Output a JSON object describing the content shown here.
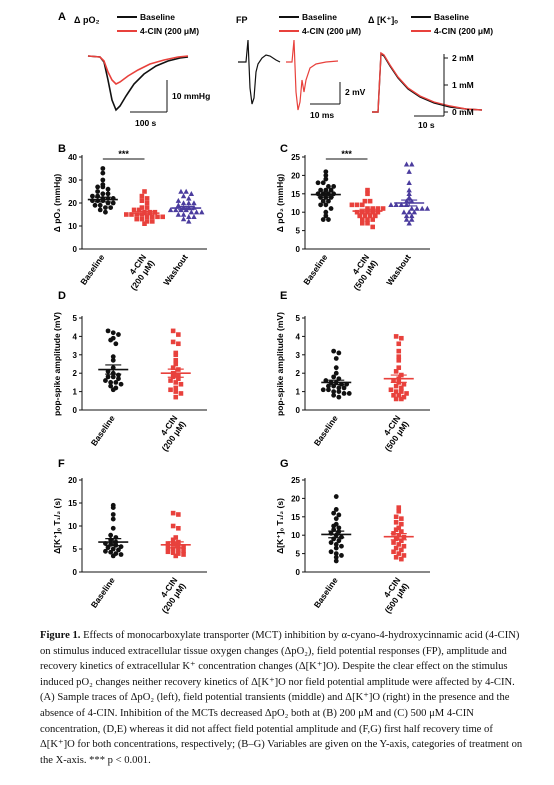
{
  "caption": {
    "label": "Figure 1.",
    "text": "Effects of monocarboxylate transporter (MCT) inhibition by α-cyano-4-hydroxycinnamic acid (4-CIN) on stimulus induced extracellular tissue oxygen changes (ΔpO₂), field potential responses (FP), amplitude and recovery kinetics of extracellular K⁺ concentration changes (Δ[K⁺]O). Despite the clear effect on the stimulus induced pO₂ changes neither recovery kinetics of Δ[K⁺]O nor field potential amplitude were affected by 4-CIN. (A) Sample traces of ΔpO₂ (left), field potential transients (middle) and Δ[K⁺]O (right) in the presence and the absence of 4-CIN. Inhibition of the MCTs decreased ΔpO₂ both at (B) 200 μM and (C) 500 μM 4-CIN concentration, (D,E) whereas it did not affect field potential amplitude and (F,G) first half recovery time of Δ[K⁺]O for both concentrations, respectively; (B–G) Variables are given on the Y-axis, categories of treatment on the X-axis. *** p < 0.001."
  },
  "colors": {
    "baseline": "#111111",
    "cin": "#e8413c",
    "washout": "#4b3c9e"
  },
  "panelA": {
    "letter": "A",
    "traces": [
      {
        "title": "Δ pO₂",
        "legend": [
          "Baseline",
          "4-CIN (200 μM)"
        ],
        "scalebars": [
          "10 mmHg",
          "100 s"
        ]
      },
      {
        "title": "FP",
        "legend": [
          "Baseline",
          "4-CIN (200 μM)"
        ],
        "scalebars": [
          "2 mV",
          "10 ms"
        ]
      },
      {
        "title": "Δ [K⁺]ₒ",
        "legend": [
          "Baseline",
          "4-CIN (200 μM)"
        ],
        "scalebars": [
          "2 mM",
          "1 mM",
          "0 mM",
          "10 s"
        ]
      }
    ]
  },
  "chart_data": [
    {
      "panel": "B",
      "type": "scatter",
      "ylabel": "Δ pO₂ (mmHg)",
      "ylim": [
        0,
        40
      ],
      "yticks": [
        0,
        10,
        20,
        30,
        40
      ],
      "categories": [
        "Baseline",
        "4-CIN (200 μM)",
        "Washout"
      ],
      "significance": "***",
      "series": [
        {
          "values": [
            35,
            33,
            30,
            28,
            27,
            27,
            26,
            25,
            24,
            24,
            23,
            23,
            22,
            22,
            22,
            21,
            21,
            21,
            20,
            20,
            19,
            19,
            18,
            18,
            17,
            16
          ],
          "mean": 21.5,
          "sem": 1.0,
          "marker": "circle"
        },
        {
          "values": [
            25,
            23,
            22,
            21,
            20,
            18,
            18,
            17,
            17,
            16,
            16,
            16,
            15,
            15,
            15,
            15,
            14,
            14,
            14,
            14,
            13,
            13,
            12,
            12,
            11
          ],
          "mean": 15.6,
          "sem": 0.7,
          "marker": "square"
        },
        {
          "values": [
            25,
            25,
            24,
            23,
            22,
            21,
            20,
            20,
            20,
            19,
            18,
            18,
            18,
            17,
            17,
            17,
            17,
            16,
            16,
            16,
            15,
            15,
            14,
            14,
            13,
            12
          ],
          "mean": 17.8,
          "sem": 0.7,
          "marker": "triangle"
        }
      ]
    },
    {
      "panel": "C",
      "type": "scatter",
      "ylabel": "Δ pO₂ (mmHg)",
      "ylim": [
        0,
        25
      ],
      "yticks": [
        0,
        5,
        10,
        15,
        20,
        25
      ],
      "categories": [
        "Baseline",
        "4-CIN (500 μM)",
        "Washout"
      ],
      "significance": "***",
      "series": [
        {
          "values": [
            21,
            20,
            19,
            18,
            18,
            17,
            17,
            16,
            16,
            16,
            15,
            15,
            15,
            15,
            14,
            14,
            14,
            13,
            13,
            12,
            12,
            11,
            10,
            9,
            8,
            8
          ],
          "mean": 14.8,
          "sem": 0.7,
          "marker": "circle"
        },
        {
          "values": [
            16,
            15,
            13,
            13,
            12,
            12,
            12,
            11,
            11,
            11,
            11,
            10,
            10,
            10,
            10,
            10,
            9,
            9,
            9,
            9,
            8,
            8,
            8,
            7,
            7,
            6
          ],
          "mean": 10.3,
          "sem": 0.5,
          "marker": "square"
        },
        {
          "values": [
            23,
            23,
            21,
            18,
            16,
            15,
            14,
            13,
            13,
            12,
            12,
            12,
            12,
            11,
            11,
            11,
            11,
            10,
            10,
            10,
            9,
            9,
            8,
            8,
            7
          ],
          "mean": 12.5,
          "sem": 0.8,
          "marker": "triangle"
        }
      ]
    },
    {
      "panel": "D",
      "type": "scatter",
      "ylabel": "pop-spike amplitude (mV)",
      "ylim": [
        0,
        5
      ],
      "yticks": [
        0,
        1,
        2,
        3,
        4,
        5
      ],
      "categories": [
        "Baseline",
        "4-CIN (200 μM)"
      ],
      "series": [
        {
          "values": [
            4.3,
            4.2,
            4.1,
            3.9,
            3.8,
            3.6,
            2.9,
            2.7,
            2.3,
            2.1,
            2.0,
            1.9,
            1.8,
            1.8,
            1.7,
            1.6,
            1.5,
            1.5,
            1.4,
            1.3,
            1.2,
            1.1
          ],
          "mean": 2.2,
          "sem": 0.25,
          "marker": "circle"
        },
        {
          "values": [
            4.3,
            4.1,
            3.7,
            3.6,
            3.1,
            3.0,
            2.7,
            2.5,
            2.3,
            2.2,
            2.0,
            1.9,
            1.8,
            1.7,
            1.6,
            1.5,
            1.4,
            1.2,
            1.1,
            1.0,
            0.9,
            0.7
          ],
          "mean": 2.0,
          "sem": 0.22,
          "marker": "square"
        }
      ]
    },
    {
      "panel": "E",
      "type": "scatter",
      "ylabel": "pop-spike amplitude (mV)",
      "ylim": [
        0,
        5
      ],
      "yticks": [
        0,
        1,
        2,
        3,
        4,
        5
      ],
      "categories": [
        "Baseline",
        "4-CIN (500 μM)"
      ],
      "series": [
        {
          "values": [
            3.2,
            3.1,
            2.8,
            2.3,
            2.0,
            1.8,
            1.7,
            1.6,
            1.5,
            1.5,
            1.4,
            1.4,
            1.3,
            1.3,
            1.2,
            1.2,
            1.1,
            1.1,
            1.0,
            1.0,
            0.9,
            0.9,
            0.8,
            0.7
          ],
          "mean": 1.5,
          "sem": 0.12,
          "marker": "circle"
        },
        {
          "values": [
            4.0,
            3.9,
            3.6,
            3.2,
            2.9,
            2.7,
            2.3,
            2.1,
            1.9,
            1.7,
            1.6,
            1.5,
            1.4,
            1.3,
            1.2,
            1.1,
            1.0,
            1.0,
            0.9,
            0.8,
            0.8,
            0.7,
            0.6,
            0.6
          ],
          "mean": 1.7,
          "sem": 0.2,
          "marker": "square"
        }
      ]
    },
    {
      "panel": "F",
      "type": "scatter",
      "ylabel": "Δ[K⁺]ₒ T₁/₂ (s)",
      "ylim": [
        0,
        20
      ],
      "yticks": [
        0,
        5,
        10,
        15,
        20
      ],
      "categories": [
        "Baseline",
        "4-CIN (200 μM)"
      ],
      "series": [
        {
          "values": [
            14.5,
            14.0,
            12.5,
            11.5,
            9.5,
            8.0,
            7.5,
            7.0,
            6.5,
            6.2,
            6.0,
            5.8,
            5.5,
            5.3,
            5.0,
            4.8,
            4.5,
            4.3,
            4.0,
            3.8,
            3.5
          ],
          "mean": 6.5,
          "sem": 0.75,
          "marker": "circle"
        },
        {
          "values": [
            12.8,
            12.5,
            10.0,
            9.5,
            7.5,
            7.0,
            6.5,
            6.2,
            6.0,
            5.8,
            5.5,
            5.3,
            5.0,
            4.8,
            4.6,
            4.4,
            4.2,
            4.0,
            3.8,
            3.5
          ],
          "mean": 5.9,
          "sem": 0.65,
          "marker": "square"
        }
      ]
    },
    {
      "panel": "G",
      "type": "scatter",
      "ylabel": "Δ[K⁺]ₒ T₁/₂ (s)",
      "ylim": [
        0,
        25
      ],
      "yticks": [
        0,
        5,
        10,
        15,
        20,
        25
      ],
      "categories": [
        "Baseline",
        "4-CIN (500 μM)"
      ],
      "series": [
        {
          "values": [
            20.5,
            17.0,
            16.0,
            15.5,
            14.5,
            13.0,
            12.5,
            12.0,
            11.5,
            11.0,
            10.5,
            10.0,
            9.5,
            9.0,
            8.5,
            8.0,
            7.5,
            7.0,
            6.5,
            5.5,
            5.0,
            4.5,
            4.0,
            3.0
          ],
          "mean": 10.2,
          "sem": 0.9,
          "marker": "circle"
        },
        {
          "values": [
            17.5,
            16.5,
            15.0,
            14.5,
            13.5,
            13.0,
            12.0,
            11.5,
            11.0,
            10.5,
            10.0,
            9.5,
            9.0,
            8.5,
            8.0,
            7.5,
            7.0,
            6.5,
            6.0,
            5.5,
            5.0,
            4.5,
            4.0,
            3.5
          ],
          "mean": 9.6,
          "sem": 0.85,
          "marker": "square"
        }
      ]
    }
  ]
}
